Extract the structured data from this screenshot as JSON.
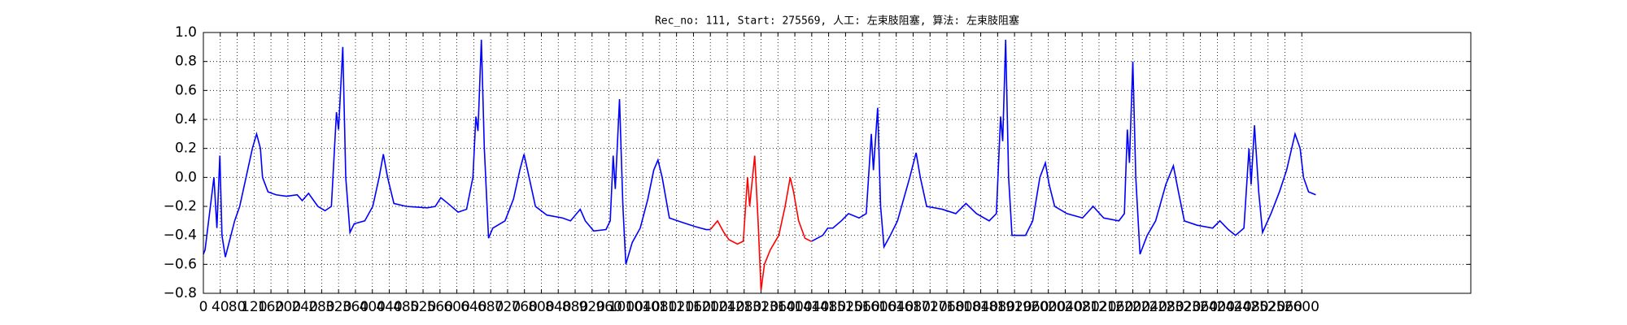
{
  "chart_data": {
    "type": "line",
    "title": "Rec_no: 111, Start: 275569, 人工: 左束肢阻塞, 算法: 左束肢阻塞",
    "xlim": [
      0,
      3000
    ],
    "ylim": [
      -0.8,
      1.0
    ],
    "xticks": [
      0,
      40,
      80,
      120,
      160,
      200,
      240,
      280,
      320,
      360,
      400,
      440,
      480,
      520,
      560,
      600,
      640,
      680,
      720,
      760,
      800,
      840,
      880,
      920,
      960,
      1000,
      1040,
      1080,
      1120,
      1160,
      1200,
      1240,
      1280,
      1320,
      1360,
      1400,
      1440,
      1480,
      1520,
      1560,
      1600,
      1640,
      1680,
      1720,
      1760,
      1800,
      1840,
      1880,
      1920,
      1960,
      2000,
      2040,
      2080,
      2120,
      2160,
      2200,
      2240,
      2280,
      2320,
      2360,
      2400,
      2440,
      2480,
      2520,
      2560,
      2600
    ],
    "yticks": [
      {
        "value": -0.8,
        "label": "−0.8"
      },
      {
        "value": -0.6,
        "label": "−0.6"
      },
      {
        "value": -0.4,
        "label": "−0.4"
      },
      {
        "value": -0.2,
        "label": "−0.2"
      },
      {
        "value": 0,
        "label": "0.0"
      },
      {
        "value": 0.2,
        "label": "0.2"
      },
      {
        "value": 0.4,
        "label": "0.4"
      },
      {
        "value": 0.6,
        "label": "0.6"
      },
      {
        "value": 0.8,
        "label": "0.8"
      },
      {
        "value": 1.0,
        "label": "1.0"
      }
    ],
    "grid": true,
    "series": [
      {
        "color": "#0000ff",
        "x": [
          0,
          4,
          25,
          32,
          39,
          44,
          52,
          74,
          86,
          101,
          116,
          126,
          135,
          140,
          153,
          172,
          197,
          222,
          234,
          249,
          271,
          288,
          303,
          315,
          320,
          330,
          337,
          347,
          357,
          382,
          401,
          416,
          426,
          436,
          451,
          480,
          530,
          549,
          562,
          579,
          603,
          623,
          638,
          645,
          650,
          658,
          665,
          675,
          685,
          714,
          734,
          749,
          759,
          771,
          786,
          813,
          850,
          869,
          892,
          904,
          924,
          953,
          963,
          970,
          975,
          985,
          993,
          1000,
          1015,
          1034,
          1052,
          1066,
          1076,
          1086,
          1103,
          1133,
          1165,
          1190,
          1200
        ],
        "values": [
          -0.53,
          -0.5,
          0.0,
          -0.35,
          0.15,
          -0.4,
          -0.55,
          -0.3,
          -0.2,
          0.0,
          0.2,
          0.3,
          0.2,
          0.0,
          -0.1,
          -0.12,
          -0.13,
          -0.12,
          -0.16,
          -0.11,
          -0.2,
          -0.23,
          -0.2,
          0.45,
          0.33,
          0.9,
          0.0,
          -0.38,
          -0.32,
          -0.3,
          -0.2,
          0.0,
          0.16,
          0.0,
          -0.18,
          -0.2,
          -0.21,
          -0.2,
          -0.14,
          -0.18,
          -0.24,
          -0.22,
          0.0,
          0.42,
          0.32,
          0.95,
          0.2,
          -0.42,
          -0.35,
          -0.3,
          -0.15,
          0.05,
          0.16,
          0.0,
          -0.2,
          -0.26,
          -0.28,
          -0.3,
          -0.22,
          -0.3,
          -0.37,
          -0.36,
          -0.3,
          0.15,
          -0.08,
          0.54,
          -0.2,
          -0.6,
          -0.45,
          -0.35,
          -0.15,
          0.05,
          0.12,
          0.0,
          -0.28,
          -0.31,
          -0.34,
          -0.36,
          -0.36
        ]
      },
      {
        "color": "#ff0000",
        "x": [
          1200,
          1217,
          1232,
          1244,
          1264,
          1278,
          1288,
          1293,
          1305,
          1313,
          1320,
          1328,
          1342,
          1362,
          1377,
          1389,
          1397,
          1409,
          1424,
          1438,
          1440
        ],
        "values": [
          -0.36,
          -0.3,
          -0.38,
          -0.43,
          -0.46,
          -0.44,
          0.0,
          -0.2,
          0.15,
          -0.3,
          -0.78,
          -0.6,
          -0.5,
          -0.4,
          -0.2,
          0.0,
          -0.1,
          -0.3,
          -0.42,
          -0.44,
          -0.44
        ]
      },
      {
        "color": "#0000ff",
        "x": [
          1440,
          1466,
          1478,
          1490,
          1510,
          1527,
          1552,
          1569,
          1581,
          1586,
          1596,
          1603,
          1611,
          1626,
          1643,
          1672,
          1687,
          1697,
          1712,
          1749,
          1781,
          1805,
          1830,
          1860,
          1877,
          1887,
          1892,
          1899,
          1906,
          1914,
          1946,
          1963,
          1980,
          1993,
          2002,
          2015,
          2044,
          2081,
          2106,
          2131,
          2167,
          2180,
          2187,
          2192,
          2200,
          2207,
          2217,
          2234,
          2254,
          2278,
          2296,
          2308,
          2322,
          2352,
          2389,
          2406,
          2426,
          2443,
          2463,
          2475,
          2480,
          2488,
          2498,
          2507,
          2527,
          2547,
          2564,
          2584,
          2596,
          2604,
          2616,
          2633
        ],
        "values": [
          -0.44,
          -0.4,
          -0.35,
          -0.35,
          -0.3,
          -0.25,
          -0.28,
          -0.25,
          0.3,
          0.05,
          0.48,
          -0.2,
          -0.48,
          -0.4,
          -0.3,
          0.0,
          0.17,
          0.0,
          -0.2,
          -0.22,
          -0.25,
          -0.18,
          -0.25,
          -0.3,
          -0.25,
          0.42,
          0.25,
          0.95,
          0.0,
          -0.4,
          -0.4,
          -0.3,
          0.0,
          0.1,
          -0.05,
          -0.2,
          -0.25,
          -0.28,
          -0.2,
          -0.28,
          -0.3,
          -0.25,
          0.33,
          0.1,
          0.8,
          0.0,
          -0.53,
          -0.4,
          -0.3,
          -0.05,
          0.08,
          -0.1,
          -0.3,
          -0.33,
          -0.35,
          -0.3,
          -0.36,
          -0.4,
          -0.35,
          0.2,
          -0.05,
          0.36,
          -0.1,
          -0.38,
          -0.25,
          -0.1,
          0.05,
          0.3,
          0.2,
          0.0,
          -0.1,
          -0.12
        ]
      }
    ]
  }
}
